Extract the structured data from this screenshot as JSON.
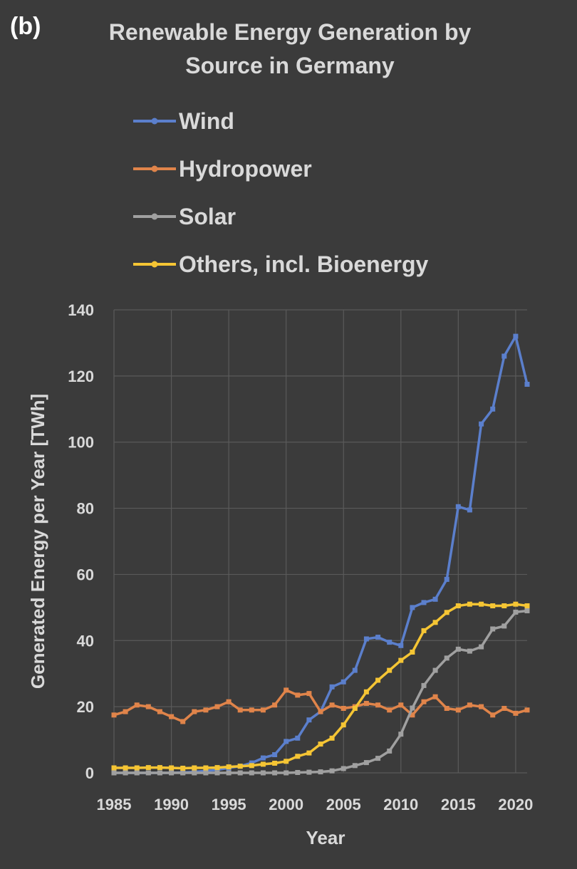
{
  "panel_label": "(b)",
  "chart_data": {
    "type": "line",
    "title_lines": [
      "Renewable Energy Generation by",
      "Source in Germany"
    ],
    "xlabel": "Year",
    "ylabel": "Generated Energy per Year [TWh]",
    "xlim": [
      1985,
      2021
    ],
    "ylim": [
      0,
      140
    ],
    "x_ticks": [
      "1985",
      "1990",
      "1995",
      "2000",
      "2005",
      "2010",
      "2015",
      "2020"
    ],
    "y_ticks": [
      "0",
      "20",
      "40",
      "60",
      "80",
      "100",
      "120",
      "140"
    ],
    "grid": true,
    "legend_position": "top",
    "x": [
      1985,
      1986,
      1987,
      1988,
      1989,
      1990,
      1991,
      1992,
      1993,
      1994,
      1995,
      1996,
      1997,
      1998,
      1999,
      2000,
      2001,
      2002,
      2003,
      2004,
      2005,
      2006,
      2007,
      2008,
      2009,
      2010,
      2011,
      2012,
      2013,
      2014,
      2015,
      2016,
      2017,
      2018,
      2019,
      2020,
      2021
    ],
    "series": [
      {
        "name": "Wind",
        "color": "#5b7fcc",
        "values": [
          0,
          0,
          0,
          0,
          0,
          0,
          0.1,
          0.3,
          0.6,
          0.9,
          1.5,
          2.0,
          3.0,
          4.5,
          5.5,
          9.5,
          10.5,
          16,
          18.5,
          26,
          27.5,
          31,
          40.5,
          41,
          39.5,
          38.5,
          50,
          51.5,
          52.5,
          58.5,
          80.5,
          79.5,
          105.5,
          110,
          126,
          132,
          117.5
        ]
      },
      {
        "name": "Hydropower",
        "color": "#e0844a",
        "values": [
          17.5,
          18.5,
          20.5,
          20,
          18.5,
          17,
          15.5,
          18.5,
          19,
          20,
          21.5,
          19,
          19,
          19,
          20.5,
          25,
          23.5,
          24,
          18.5,
          20.5,
          19.5,
          20,
          21,
          20.5,
          19,
          20.5,
          17.5,
          21.5,
          23,
          19.5,
          19,
          20.5,
          20,
          17.5,
          19.5,
          18,
          19
        ]
      },
      {
        "name": "Solar",
        "color": "#a0a0a0",
        "values": [
          0,
          0,
          0,
          0,
          0,
          0,
          0,
          0,
          0,
          0,
          0,
          0,
          0,
          0,
          0,
          0,
          0.1,
          0.2,
          0.3,
          0.6,
          1.3,
          2.2,
          3.1,
          4.4,
          6.6,
          11.7,
          19.6,
          26.4,
          31,
          34.7,
          37.4,
          36.8,
          38.1,
          43.5,
          44.4,
          48.6,
          49
        ]
      },
      {
        "name": "Others, incl. Bioenergy",
        "color": "#f5c534",
        "values": [
          1.5,
          1.5,
          1.5,
          1.6,
          1.6,
          1.5,
          1.4,
          1.5,
          1.5,
          1.6,
          1.8,
          2.0,
          2.2,
          2.6,
          2.9,
          3.5,
          5.0,
          6.0,
          8.7,
          10.5,
          14.5,
          19.5,
          24.5,
          28,
          31,
          34,
          36.5,
          43,
          45.5,
          48.5,
          50.5,
          51,
          51,
          50.5,
          50.5,
          51,
          50.5
        ]
      }
    ]
  }
}
